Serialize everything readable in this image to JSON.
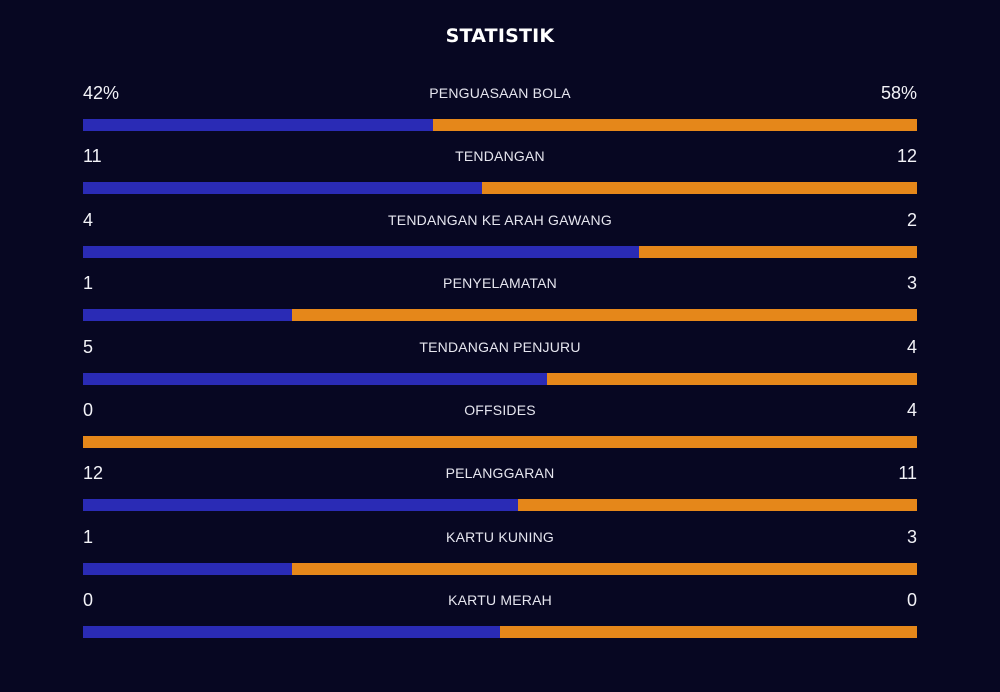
{
  "title": "STATISTIK",
  "colors": {
    "background": "#070722",
    "home": "#2a2bb5",
    "away": "#e5871a"
  },
  "stats": [
    {
      "label": "PENGUASAAN BOLA",
      "home": "42%",
      "away": "58%",
      "home_share": 0.42
    },
    {
      "label": "TENDANGAN",
      "home": "11",
      "away": "12",
      "home_share": 0.478
    },
    {
      "label": "TENDANGAN KE ARAH GAWANG",
      "home": "4",
      "away": "2",
      "home_share": 0.667
    },
    {
      "label": "PENYELAMATAN",
      "home": "1",
      "away": "3",
      "home_share": 0.25
    },
    {
      "label": "TENDANGAN PENJURU",
      "home": "5",
      "away": "4",
      "home_share": 0.556
    },
    {
      "label": "OFFSIDES",
      "home": "0",
      "away": "4",
      "home_share": 0.0
    },
    {
      "label": "PELANGGARAN",
      "home": "12",
      "away": "11",
      "home_share": 0.522
    },
    {
      "label": "KARTU KUNING",
      "home": "1",
      "away": "3",
      "home_share": 0.25
    },
    {
      "label": "KARTU MERAH",
      "home": "0",
      "away": "0",
      "home_share": 0.5
    }
  ]
}
